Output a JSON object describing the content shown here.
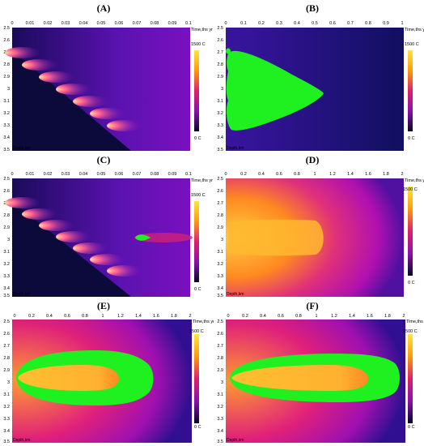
{
  "colors": {
    "background_dark": "#0b0a3a",
    "melt_green": "#1ff01f",
    "heat_orange": "#ffb020",
    "heat_magenta": "#b000b0",
    "heat_purple": "#3a10a0"
  },
  "shared": {
    "y_ticks": [
      "2.5",
      "2.6",
      "2.7",
      "2.8",
      "2.9",
      "3",
      "3.1",
      "3.2",
      "3.3",
      "3.4",
      "3.5"
    ],
    "y_label": "Depth,km",
    "x_label": "Time,ths yr",
    "colorbar_max": "1500 C",
    "colorbar_min": "0 C"
  },
  "panels": [
    {
      "id": "A",
      "label": "(A)",
      "x_ticks": [
        "0",
        "0.01",
        "0.02",
        "0.03",
        "0.04",
        "0.05",
        "0.06",
        "0.07",
        "0.08",
        "0.09",
        "0.1"
      ]
    },
    {
      "id": "B",
      "label": "(B)",
      "x_ticks": [
        "0",
        "0.1",
        "0.2",
        "0.3",
        "0.4",
        "0.5",
        "0.6",
        "0.7",
        "0.8",
        "0.9",
        "1"
      ]
    },
    {
      "id": "C",
      "label": "(C)",
      "x_ticks": [
        "0",
        "0.01",
        "0.02",
        "0.03",
        "0.04",
        "0.05",
        "0.06",
        "0.07",
        "0.08",
        "0.09",
        "0.1"
      ]
    },
    {
      "id": "D",
      "label": "(D)",
      "x_ticks": [
        "0",
        "0.2",
        "0.4",
        "0.6",
        "0.8",
        "1",
        "1.2",
        "1.4",
        "1.6",
        "1.8",
        "2"
      ]
    },
    {
      "id": "E",
      "label": "(E)",
      "x_ticks": [
        "0",
        "0.2",
        "0.4",
        "0.6",
        "0.8",
        "1",
        "1.2",
        "1.4",
        "1.6",
        "1.8",
        "2"
      ]
    },
    {
      "id": "F",
      "label": "(F)",
      "x_ticks": [
        "0",
        "0.2",
        "0.4",
        "0.6",
        "0.8",
        "1",
        "1.2",
        "1.4",
        "1.6",
        "1.8",
        "2"
      ]
    }
  ],
  "chart_data": [
    {
      "panel": "A",
      "type": "heatmap",
      "xlabel": "Time,ths yr",
      "ylabel": "Depth,km",
      "xlim": [
        0,
        0.1
      ],
      "ylim": [
        2.5,
        3.5
      ],
      "colorbar": [
        "0 C",
        "1500 C"
      ]
    },
    {
      "panel": "B",
      "type": "heatmap",
      "xlabel": "Time,ths yr",
      "ylabel": "Depth,km",
      "xlim": [
        0,
        1
      ],
      "ylim": [
        2.5,
        3.5
      ],
      "colorbar": [
        "0 C",
        "1500 C"
      ]
    },
    {
      "panel": "C",
      "type": "heatmap",
      "xlabel": "Time,ths yr",
      "ylabel": "Depth,km",
      "xlim": [
        0,
        0.1
      ],
      "ylim": [
        2.5,
        3.5
      ],
      "colorbar": [
        "0 C",
        "1500 C"
      ]
    },
    {
      "panel": "D",
      "type": "heatmap",
      "xlabel": "Time,ths yr",
      "ylabel": "Depth,km",
      "xlim": [
        0,
        2
      ],
      "ylim": [
        2.5,
        3.5
      ],
      "colorbar": [
        "0 C",
        "1500 C"
      ]
    },
    {
      "panel": "E",
      "type": "heatmap",
      "xlabel": "Time,ths yr",
      "ylabel": "Depth,km",
      "xlim": [
        0,
        2
      ],
      "ylim": [
        2.5,
        3.5
      ],
      "colorbar": [
        "0 C",
        "1500 C"
      ]
    },
    {
      "panel": "F",
      "type": "heatmap",
      "xlabel": "Time,ths yr",
      "ylabel": "Depth,km",
      "xlim": [
        0,
        2
      ],
      "ylim": [
        2.5,
        3.5
      ],
      "colorbar": [
        "0 C",
        "1500 C"
      ]
    }
  ]
}
